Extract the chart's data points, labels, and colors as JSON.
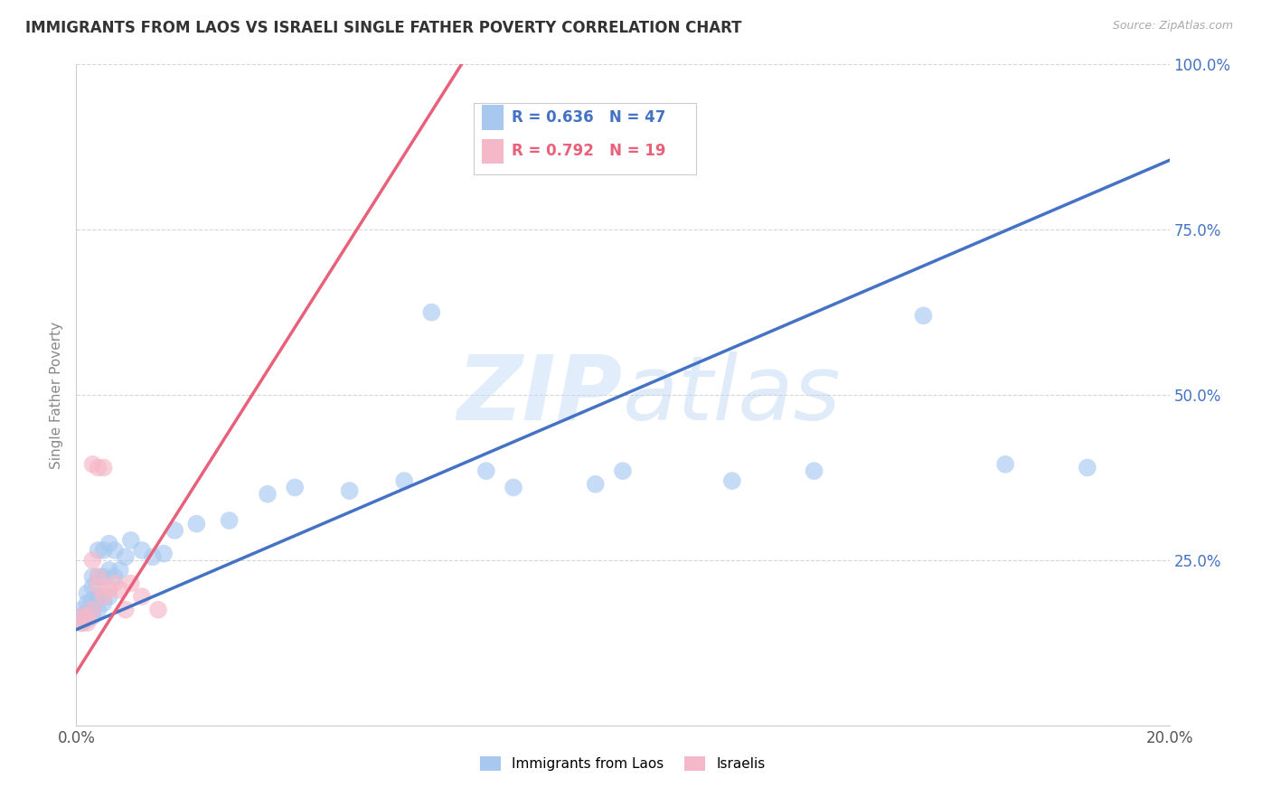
{
  "title": "IMMIGRANTS FROM LAOS VS ISRAELI SINGLE FATHER POVERTY CORRELATION CHART",
  "source": "Source: ZipAtlas.com",
  "ylabel": "Single Father Poverty",
  "x_min": 0.0,
  "x_max": 0.2,
  "y_min": 0.0,
  "y_max": 1.0,
  "blue_R": "0.636",
  "blue_N": "47",
  "pink_R": "0.792",
  "pink_N": "19",
  "blue_color": "#a8c8f0",
  "pink_color": "#f5b8c8",
  "blue_line_color": "#4472c4",
  "pink_line_color": "#e8607a",
  "watermark_zip": "ZIP",
  "watermark_atlas": "atlas",
  "legend_label_blue": "Immigrants from Laos",
  "legend_label_pink": "Israelis",
  "blue_x": [
    0.001,
    0.001,
    0.001,
    0.002,
    0.002,
    0.002,
    0.002,
    0.003,
    0.003,
    0.003,
    0.003,
    0.003,
    0.004,
    0.004,
    0.004,
    0.004,
    0.005,
    0.005,
    0.005,
    0.006,
    0.006,
    0.006,
    0.007,
    0.007,
    0.008,
    0.009,
    0.01,
    0.012,
    0.014,
    0.016,
    0.018,
    0.022,
    0.028,
    0.035,
    0.04,
    0.05,
    0.06,
    0.065,
    0.075,
    0.08,
    0.095,
    0.1,
    0.12,
    0.135,
    0.155,
    0.17,
    0.185
  ],
  "blue_y": [
    0.155,
    0.165,
    0.175,
    0.16,
    0.17,
    0.185,
    0.2,
    0.165,
    0.175,
    0.19,
    0.21,
    0.225,
    0.175,
    0.195,
    0.225,
    0.265,
    0.185,
    0.225,
    0.265,
    0.195,
    0.235,
    0.275,
    0.225,
    0.265,
    0.235,
    0.255,
    0.28,
    0.265,
    0.255,
    0.26,
    0.295,
    0.305,
    0.31,
    0.35,
    0.36,
    0.355,
    0.37,
    0.625,
    0.385,
    0.36,
    0.365,
    0.385,
    0.37,
    0.385,
    0.62,
    0.395,
    0.39
  ],
  "pink_x": [
    0.001,
    0.001,
    0.002,
    0.002,
    0.003,
    0.003,
    0.003,
    0.004,
    0.004,
    0.004,
    0.005,
    0.005,
    0.006,
    0.007,
    0.008,
    0.009,
    0.01,
    0.012,
    0.015
  ],
  "pink_y": [
    0.155,
    0.165,
    0.155,
    0.165,
    0.175,
    0.25,
    0.395,
    0.21,
    0.225,
    0.39,
    0.195,
    0.39,
    0.205,
    0.215,
    0.205,
    0.175,
    0.215,
    0.195,
    0.175
  ],
  "blue_line_x0": 0.0,
  "blue_line_y0": 0.145,
  "blue_line_x1": 0.2,
  "blue_line_y1": 0.855,
  "pink_line_x0": 0.0,
  "pink_line_y0": 0.08,
  "pink_line_x1": 0.072,
  "pink_line_y1": 1.02
}
